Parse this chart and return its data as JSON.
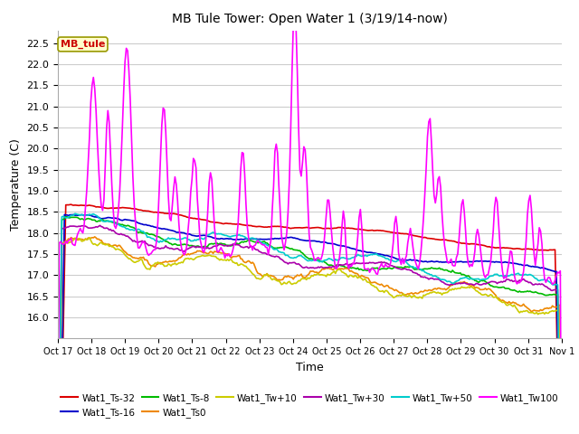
{
  "title": "MB Tule Tower: Open Water 1 (3/19/14-now)",
  "xlabel": "Time",
  "ylabel": "Temperature (C)",
  "ylim": [
    15.5,
    22.8
  ],
  "xlim": [
    0,
    15
  ],
  "xtick_positions": [
    0,
    1,
    2,
    3,
    4,
    5,
    6,
    7,
    8,
    9,
    10,
    11,
    12,
    13,
    14,
    15
  ],
  "xtick_labels": [
    "Oct 17",
    "Oct 18",
    "Oct 19",
    "Oct 20",
    "Oct 21",
    "Oct 22",
    "Oct 23",
    "Oct 24",
    "Oct 25",
    "Oct 26",
    "Oct 27",
    "Oct 28",
    "Oct 29",
    "Oct 30",
    "Oct 31",
    "Nov 1"
  ],
  "ytick_vals": [
    16.0,
    16.5,
    17.0,
    17.5,
    18.0,
    18.5,
    19.0,
    19.5,
    20.0,
    20.5,
    21.0,
    21.5,
    22.0,
    22.5
  ],
  "series_order": [
    "Wat1_Ts-32",
    "Wat1_Ts-16",
    "Wat1_Ts-8",
    "Wat1_Ts0",
    "Wat1_Tw+10",
    "Wat1_Tw+30",
    "Wat1_Tw+50",
    "Wat1_Tw100"
  ],
  "series": {
    "Wat1_Ts-32": {
      "color": "#dd0000",
      "lw": 1.2
    },
    "Wat1_Ts-16": {
      "color": "#0000cc",
      "lw": 1.2
    },
    "Wat1_Ts-8": {
      "color": "#00bb00",
      "lw": 1.2
    },
    "Wat1_Ts0": {
      "color": "#ee8800",
      "lw": 1.2
    },
    "Wat1_Tw+10": {
      "color": "#cccc00",
      "lw": 1.2
    },
    "Wat1_Tw+30": {
      "color": "#aa00aa",
      "lw": 1.2
    },
    "Wat1_Tw+50": {
      "color": "#00cccc",
      "lw": 1.2
    },
    "Wat1_Tw100": {
      "color": "#ff00ff",
      "lw": 1.2
    }
  },
  "annotation_text": "MB_tule",
  "annotation_color": "#cc0000",
  "annotation_bg": "#ffffcc",
  "annotation_edge": "#999900",
  "background_color": "#ffffff",
  "grid_color": "#cccccc",
  "figsize": [
    6.4,
    4.8
  ],
  "dpi": 100
}
